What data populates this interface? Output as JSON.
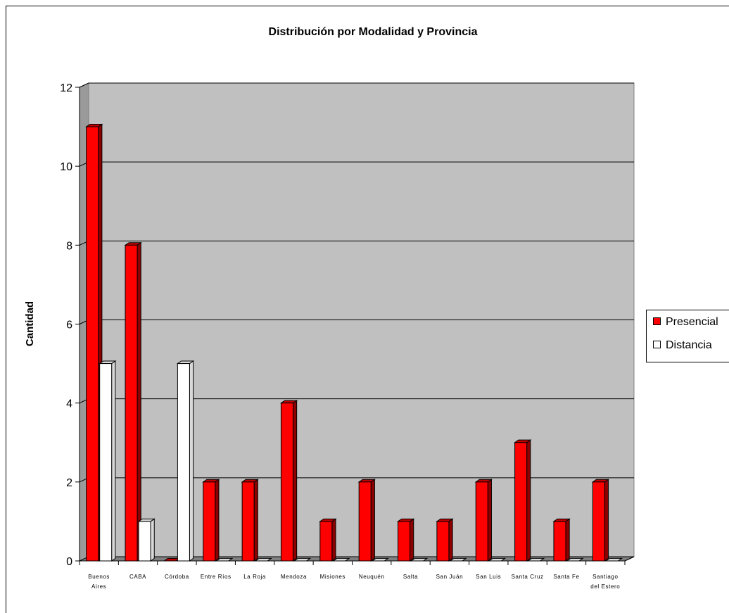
{
  "chart_data": {
    "type": "bar",
    "title": "Distribución por Modalidad y Provincia",
    "xlabel": "",
    "ylabel": "Cantidad",
    "ylim": [
      0,
      12
    ],
    "yticks": [
      0,
      2,
      4,
      6,
      8,
      10,
      12
    ],
    "grid": true,
    "legend_position": "right",
    "categories": [
      [
        "Buenos",
        "Aires"
      ],
      [
        "CABA"
      ],
      [
        "Córdoba"
      ],
      [
        "Entre Ríos"
      ],
      [
        "La Roja"
      ],
      [
        "Mendoza"
      ],
      [
        "Misiones"
      ],
      [
        "Neuquén"
      ],
      [
        "Salta"
      ],
      [
        "San Juán"
      ],
      [
        "San Luis"
      ],
      [
        "Santa Cruz"
      ],
      [
        "Santa Fe"
      ],
      [
        "Santiago",
        "del Estero"
      ]
    ],
    "series": [
      {
        "name": "Presencial",
        "color": "#ff0000",
        "values": [
          11,
          8,
          0,
          2,
          2,
          4,
          1,
          2,
          1,
          1,
          2,
          3,
          1,
          2
        ]
      },
      {
        "name": "Distancia",
        "color": "#ffffff",
        "values": [
          5,
          1,
          5,
          0,
          0,
          0,
          0,
          0,
          0,
          0,
          0,
          0,
          0,
          0
        ]
      }
    ]
  }
}
